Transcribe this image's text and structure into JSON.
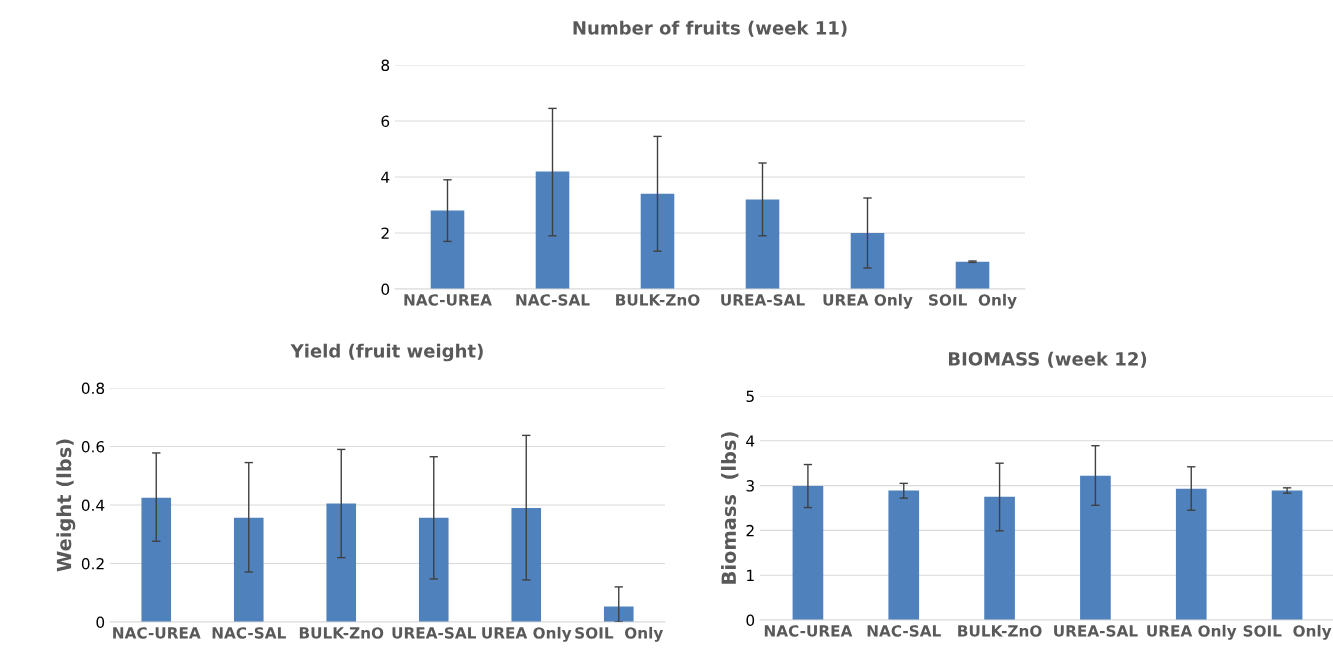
{
  "chart_data": [
    {
      "type": "bar",
      "title": "Number of fruits (week 11)",
      "categories": [
        "NAC-UREA",
        "NAC-SAL",
        "BULK-ZnO",
        "UREA-SAL",
        "UREA Only",
        "SOIL  Only"
      ],
      "values": [
        2.8,
        4.2,
        3.4,
        3.2,
        2.0,
        0.97
      ],
      "color": "#4f81bd",
      "errors": [
        [
          1.7,
          3.9
        ],
        [
          1.9,
          6.45
        ],
        [
          1.35,
          5.45
        ],
        [
          1.9,
          4.5
        ],
        [
          0.75,
          3.25
        ],
        [
          0.95,
          1.0
        ]
      ],
      "ylim": [
        0,
        8
      ],
      "yticks": [
        0,
        2,
        4,
        6,
        8
      ],
      "grid": "y"
    },
    {
      "type": "bar",
      "title": "Yield (fruit weight)",
      "ylabel": "Weight (lbs)",
      "categories": [
        "NAC-UREA",
        "NAC-SAL",
        "BULK-ZnO",
        "UREA-SAL",
        "UREA Only",
        "SOIL  Only"
      ],
      "values": [
        0.425,
        0.356,
        0.405,
        0.356,
        0.39,
        0.053
      ],
      "color": "#4f81bd",
      "errors": [
        [
          0.276,
          0.578
        ],
        [
          0.171,
          0.545
        ],
        [
          0.22,
          0.59
        ],
        [
          0.147,
          0.565
        ],
        [
          0.144,
          0.638
        ],
        [
          0,
          0.12
        ]
      ],
      "ylim": [
        0,
        0.8
      ],
      "yticks": [
        {
          "value": 0,
          "label": "0"
        },
        0.2,
        0.4,
        0.6,
        0.8
      ],
      "grid": "y"
    },
    {
      "type": "bar",
      "title": "BIOMASS (week 12)",
      "ylabel": "Biomass  (lbs)",
      "categories": [
        "NAC-UREA",
        "NAC-SAL",
        "BULK-ZnO",
        "UREA-SAL",
        "UREA Only",
        "SOIL  Only"
      ],
      "values": [
        2.99,
        2.89,
        2.75,
        3.22,
        2.93,
        2.89
      ],
      "color": "#4f81bd",
      "errors": [
        [
          2.51,
          3.47
        ],
        [
          2.72,
          3.05
        ],
        [
          1.99,
          3.5
        ],
        [
          2.56,
          3.89
        ],
        [
          2.45,
          3.42
        ],
        [
          2.83,
          2.95
        ]
      ],
      "ylim": [
        0,
        5
      ],
      "yticks": [
        0,
        1,
        2,
        3,
        4,
        5
      ],
      "grid": "y"
    }
  ]
}
